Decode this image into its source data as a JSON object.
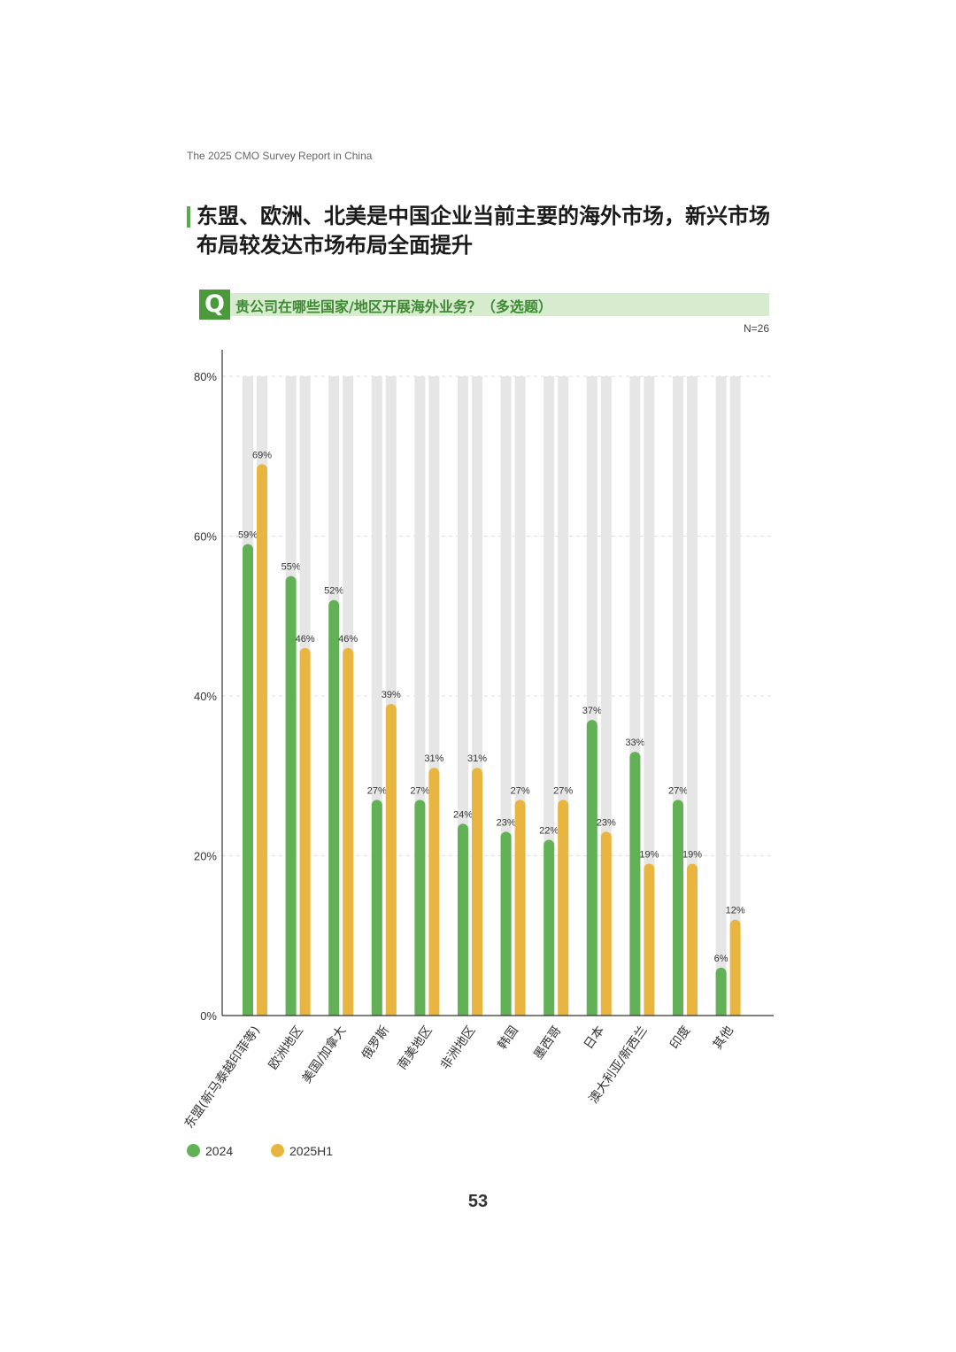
{
  "header": {
    "report_title": "The 2025 CMO Survey Report in China"
  },
  "title": "东盟、欧洲、北美是中国企业当前主要的海外市场，新兴市场布局较发达市场布局全面提升",
  "question": {
    "badge": "Q",
    "text": "贵公司在哪些国家/地区开展海外业务？（多选题）"
  },
  "sample_size": "N=26",
  "page_number": "53",
  "colors": {
    "series_2024": "#62b156",
    "series_2025H1": "#e8b640",
    "track": "#e6e6e6",
    "accent": "#4a9a3c"
  },
  "chart_data": {
    "type": "bar",
    "title": "",
    "xlabel": "",
    "ylabel": "",
    "ylim": [
      0,
      80
    ],
    "yticks": [
      "0%",
      "20%",
      "40%",
      "60%",
      "80%"
    ],
    "value_suffix": "%",
    "categories": [
      "东盟(新马泰越印菲等)",
      "欧洲地区",
      "美国/加拿大",
      "俄罗斯",
      "南美地区",
      "非洲地区",
      "韩国",
      "墨西哥",
      "日本",
      "澳大利亚/新西兰",
      "印度",
      "其他"
    ],
    "series": [
      {
        "name": "2024",
        "values": [
          59,
          55,
          52,
          27,
          27,
          24,
          23,
          22,
          37,
          33,
          27,
          6
        ]
      },
      {
        "name": "2025H1",
        "values": [
          69,
          46,
          46,
          39,
          31,
          31,
          27,
          27,
          23,
          19,
          19,
          12
        ]
      }
    ],
    "legend_position": "bottom-left",
    "grid": true
  }
}
